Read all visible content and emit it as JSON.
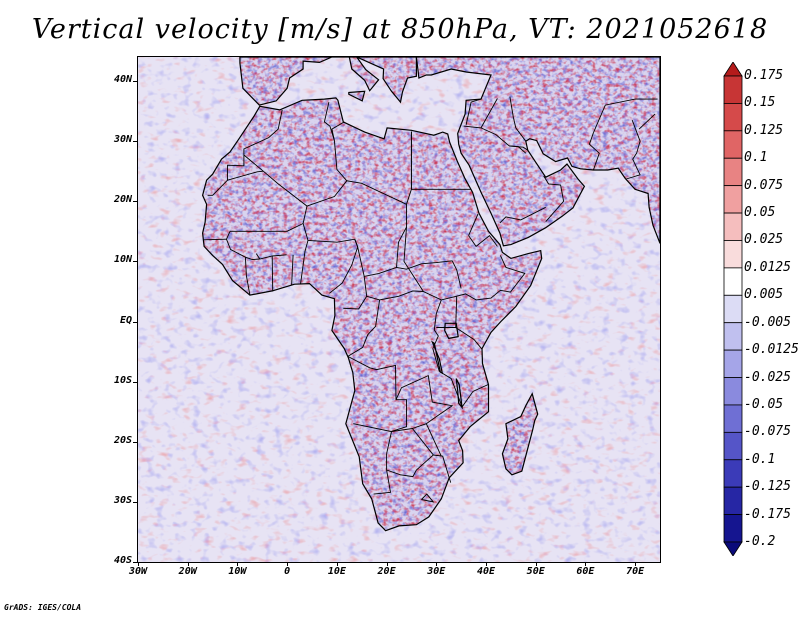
{
  "title": "Vertical velocity [m/s] at 850hPa, VT: 2021052618",
  "credit": "GrADS: IGES/COLA",
  "map": {
    "lat_labels": [
      "40N",
      "30N",
      "20N",
      "10N",
      "EQ",
      "10S",
      "20S",
      "30S",
      "40S"
    ],
    "lon_labels": [
      "30W",
      "20W",
      "10W",
      "0",
      "10E",
      "20E",
      "30E",
      "40E",
      "50E",
      "60E",
      "70E"
    ],
    "lon_range": [
      -30,
      75
    ],
    "lat_range": [
      -40,
      44
    ]
  },
  "colorbar": {
    "labels": [
      "0.175",
      "0.15",
      "0.125",
      "0.1",
      "0.075",
      "0.05",
      "0.025",
      "0.0125",
      "0.005",
      "-0.005",
      "-0.0125",
      "-0.025",
      "-0.05",
      "-0.075",
      "-0.1",
      "-0.125",
      "-0.175",
      "-0.2"
    ],
    "colors": [
      "#b41b1b",
      "#c73535",
      "#d54a4a",
      "#e06565",
      "#e88383",
      "#f0a0a0",
      "#f5bebe",
      "#f9dcdc",
      "#ffffff",
      "#dcdcf5",
      "#c0c0ef",
      "#a5a5e8",
      "#8a8ade",
      "#6f6fd4",
      "#5555c8",
      "#3b3bb8",
      "#2626a4",
      "#151590",
      "#0a0a7a"
    ]
  },
  "colors": {
    "land_background": "#d9d4ef",
    "ocean_background": "#e7e3f4",
    "border": "#000000"
  }
}
